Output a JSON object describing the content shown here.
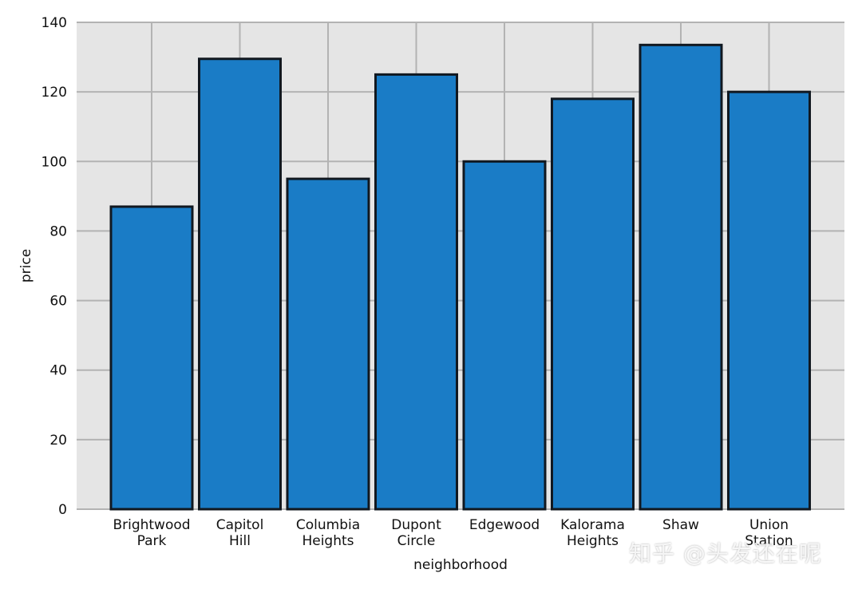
{
  "chart_data": {
    "type": "bar",
    "categories": [
      "Brightwood\nPark",
      "Capitol\nHill",
      "Columbia\nHeights",
      "Dupont\nCircle",
      "Edgewood",
      "Kalorama\nHeights",
      "Shaw",
      "Union\nStation"
    ],
    "values": [
      87,
      129.5,
      95,
      125,
      100,
      118,
      133.5,
      120
    ],
    "xlabel": "neighborhood",
    "ylabel": "price",
    "ylim": [
      0,
      140
    ],
    "yticks": [
      0,
      20,
      40,
      60,
      80,
      100,
      120,
      140
    ],
    "grid": true,
    "colors": {
      "bar": "#1a7cc6",
      "edge": "#111820",
      "background": "#e5e5e5",
      "grid": "#b3b3b3"
    }
  },
  "watermark": "知乎 @头发还在呢"
}
